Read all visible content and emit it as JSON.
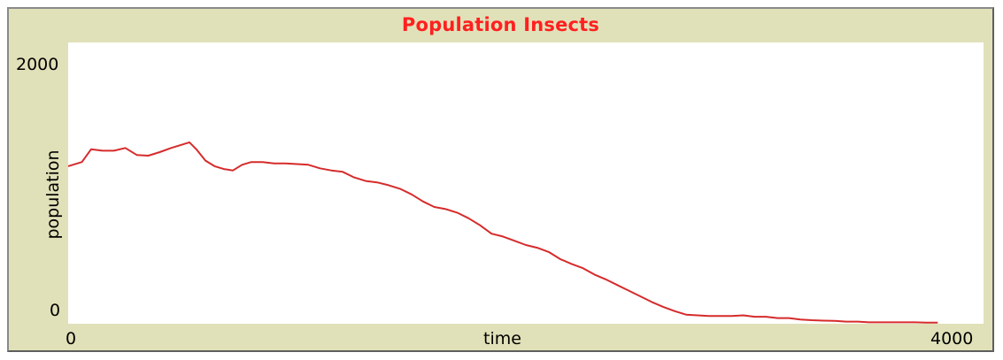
{
  "chart_data": {
    "type": "line",
    "title": "Population Insects",
    "xlabel": "time",
    "ylabel": "population",
    "xlim": [
      0,
      4000
    ],
    "ylim": [
      0,
      2000
    ],
    "x_ticks": [
      "0",
      "4000"
    ],
    "y_ticks": [
      "2000",
      "0"
    ],
    "grid": false,
    "series": [
      {
        "color": "#d62b2b",
        "x": [
          0,
          60,
          100,
          150,
          200,
          250,
          300,
          350,
          400,
          450,
          500,
          530,
          560,
          600,
          640,
          680,
          720,
          760,
          800,
          850,
          900,
          950,
          1000,
          1050,
          1100,
          1150,
          1200,
          1250,
          1300,
          1350,
          1400,
          1450,
          1500,
          1550,
          1600,
          1650,
          1700,
          1750,
          1800,
          1850,
          1900,
          1950,
          2000,
          2050,
          2100,
          2150,
          2200,
          2250,
          2300,
          2350,
          2400,
          2450,
          2500,
          2550,
          2600,
          2650,
          2700,
          2750,
          2800,
          2850,
          2900,
          2950,
          3000,
          3050,
          3100,
          3150,
          3200,
          3250,
          3300,
          3350,
          3400,
          3450,
          3500,
          3550,
          3600,
          3650,
          3700,
          3750,
          3800
        ],
        "y": [
          1120,
          1150,
          1240,
          1230,
          1230,
          1250,
          1200,
          1195,
          1220,
          1250,
          1275,
          1290,
          1240,
          1160,
          1120,
          1100,
          1090,
          1130,
          1150,
          1150,
          1140,
          1140,
          1135,
          1130,
          1105,
          1090,
          1080,
          1040,
          1015,
          1005,
          985,
          960,
          920,
          870,
          830,
          815,
          790,
          750,
          700,
          640,
          620,
          590,
          560,
          540,
          510,
          460,
          425,
          395,
          350,
          315,
          275,
          235,
          195,
          155,
          120,
          90,
          65,
          60,
          55,
          55,
          55,
          60,
          50,
          50,
          40,
          40,
          30,
          25,
          22,
          20,
          15,
          15,
          10,
          10,
          10,
          10,
          10,
          8,
          8
        ]
      }
    ]
  }
}
